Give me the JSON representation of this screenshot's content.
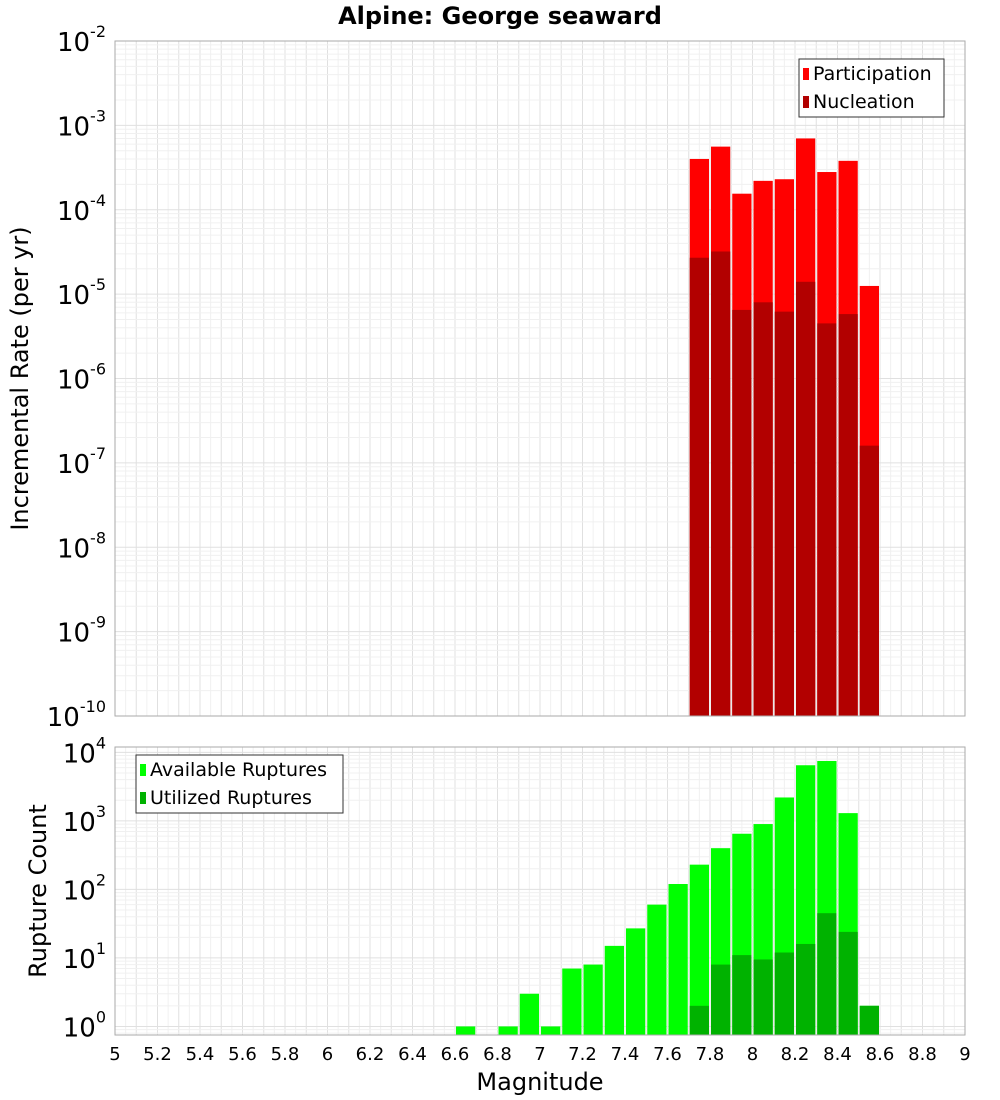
{
  "title": "Alpine: George seaward",
  "xlabel": "Magnitude",
  "colors": {
    "participation": "#ff0000",
    "nucleation": "#b20000",
    "available": "#00ff00",
    "utilized": "#00b200"
  },
  "x_ticks": [
    "5",
    "5.2",
    "5.4",
    "5.6",
    "5.8",
    "6",
    "6.2",
    "6.4",
    "6.6",
    "6.8",
    "7",
    "7.2",
    "7.4",
    "7.6",
    "7.8",
    "8",
    "8.2",
    "8.4",
    "8.6",
    "8.8",
    "9"
  ],
  "chart_data": [
    {
      "type": "bar",
      "ylabel": "Incremental Rate (per yr)",
      "yscale": "log",
      "xlim": [
        5,
        9
      ],
      "ylim": [
        1e-10,
        0.01
      ],
      "y_ticks": [
        {
          "base": "10",
          "exp": "-10"
        },
        {
          "base": "10",
          "exp": "-9"
        },
        {
          "base": "10",
          "exp": "-8"
        },
        {
          "base": "10",
          "exp": "-7"
        },
        {
          "base": "10",
          "exp": "-6"
        },
        {
          "base": "10",
          "exp": "-5"
        },
        {
          "base": "10",
          "exp": "-4"
        },
        {
          "base": "10",
          "exp": "-3"
        },
        {
          "base": "10",
          "exp": "-2"
        }
      ],
      "legend_position": "top-right",
      "x": [
        7.75,
        7.85,
        7.95,
        8.05,
        8.15,
        8.25,
        8.35,
        8.45,
        8.55
      ],
      "series": [
        {
          "name": "Participation",
          "color_key": "participation",
          "values": [
            0.0004,
            0.00056,
            0.000155,
            0.00022,
            0.00023,
            0.0007,
            0.00028,
            0.00038,
            1.25e-05
          ]
        },
        {
          "name": "Nucleation",
          "color_key": "nucleation",
          "values": [
            2.7e-05,
            3.2e-05,
            6.5e-06,
            8e-06,
            6.2e-06,
            1.4e-05,
            4.5e-06,
            5.8e-06,
            1.6e-07
          ]
        }
      ]
    },
    {
      "type": "bar",
      "ylabel": "Rupture Count",
      "yscale": "log",
      "xlim": [
        5,
        9
      ],
      "ylim": [
        0.75,
        12000
      ],
      "y_ticks": [
        {
          "base": "10",
          "exp": "0"
        },
        {
          "base": "10",
          "exp": "1"
        },
        {
          "base": "10",
          "exp": "2"
        },
        {
          "base": "10",
          "exp": "3"
        },
        {
          "base": "10",
          "exp": "4"
        }
      ],
      "legend_position": "top-left",
      "series": [
        {
          "name": "Available Ruptures",
          "color_key": "available",
          "x": [
            6.65,
            6.85,
            6.95,
            7.05,
            7.15,
            7.25,
            7.35,
            7.45,
            7.55,
            7.65,
            7.75,
            7.85,
            7.95,
            8.05,
            8.15,
            8.25,
            8.35,
            8.45,
            8.55
          ],
          "values": [
            1,
            1,
            3,
            1,
            7,
            8,
            15,
            27,
            60,
            120,
            230,
            400,
            650,
            900,
            2200,
            6500,
            7500,
            1300,
            2
          ]
        },
        {
          "name": "Utilized Ruptures",
          "color_key": "utilized",
          "x": [
            7.75,
            7.85,
            7.95,
            8.05,
            8.15,
            8.25,
            8.35,
            8.45,
            8.55
          ],
          "values": [
            2,
            8,
            11,
            9.5,
            12,
            16,
            45,
            24,
            2
          ]
        }
      ]
    }
  ]
}
